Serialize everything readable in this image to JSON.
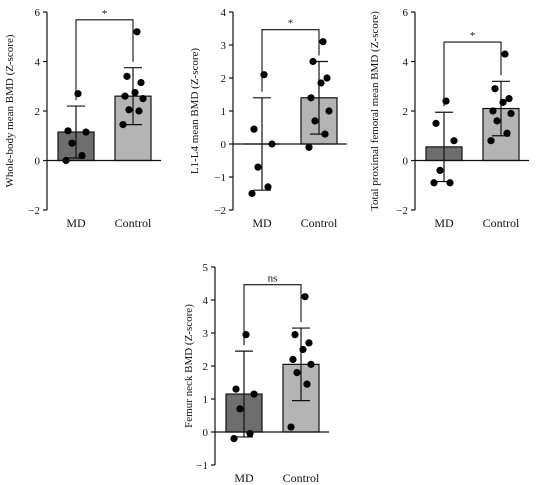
{
  "chart_data": [
    {
      "type": "bar",
      "ylabel": "Whole-body mean BMD (Z-score)",
      "ylim": [
        -2,
        6
      ],
      "yticks": [
        -2,
        0,
        2,
        4,
        6
      ],
      "categories": [
        "MD",
        "Control"
      ],
      "values": [
        1.15,
        2.6
      ],
      "error_sd": [
        1.05,
        1.15
      ],
      "points": [
        [
          0.0,
          0.2,
          0.7,
          1.15,
          1.2,
          2.7
        ],
        [
          1.45,
          2.0,
          2.05,
          2.5,
          2.6,
          2.75,
          3.15,
          3.4,
          5.2
        ]
      ],
      "significance": "*",
      "bar_colors": [
        "#6e6e6e",
        "#b4b4b4"
      ]
    },
    {
      "type": "bar",
      "ylabel": "L1-L4 mean BMD (Z-score)",
      "ylim": [
        -2,
        4
      ],
      "yticks": [
        -2,
        -1,
        0,
        1,
        2,
        3,
        4
      ],
      "categories": [
        "MD",
        "Control"
      ],
      "values": [
        0.0,
        1.4
      ],
      "error_sd": [
        1.4,
        1.1
      ],
      "points": [
        [
          -1.5,
          -1.3,
          -0.7,
          0.0,
          0.45,
          2.1
        ],
        [
          -0.1,
          0.3,
          0.7,
          1.0,
          1.4,
          1.85,
          2.0,
          2.5,
          3.1
        ]
      ],
      "significance": "*",
      "bar_colors": [
        "#6e6e6e",
        "#b4b4b4"
      ]
    },
    {
      "type": "bar",
      "ylabel": "Total proximal femoral mean BMD (Z-score)",
      "ylim": [
        -2,
        6
      ],
      "yticks": [
        -2,
        0,
        2,
        4,
        6
      ],
      "categories": [
        "MD",
        "Control"
      ],
      "values": [
        0.55,
        2.1
      ],
      "error_sd": [
        1.4,
        1.1
      ],
      "points": [
        [
          -0.9,
          -0.9,
          -0.4,
          0.8,
          1.5,
          2.4
        ],
        [
          0.8,
          1.1,
          1.6,
          1.9,
          2.0,
          2.35,
          2.5,
          2.9,
          4.3
        ]
      ],
      "significance": "*",
      "bar_colors": [
        "#6e6e6e",
        "#b4b4b4"
      ]
    },
    {
      "type": "bar",
      "ylabel": "Femur neck BMD (Z-score)",
      "ylim": [
        -1,
        5
      ],
      "yticks": [
        -1,
        0,
        1,
        2,
        3,
        4,
        5
      ],
      "categories": [
        "MD",
        "Control"
      ],
      "values": [
        1.15,
        2.05
      ],
      "error_sd": [
        1.3,
        1.1
      ],
      "points": [
        [
          -0.2,
          -0.05,
          0.7,
          1.15,
          1.3,
          2.95
        ],
        [
          0.15,
          1.45,
          1.8,
          2.05,
          2.2,
          2.5,
          2.7,
          2.95,
          4.1
        ]
      ],
      "significance": "ns",
      "bar_colors": [
        "#6e6e6e",
        "#b4b4b4"
      ]
    }
  ]
}
